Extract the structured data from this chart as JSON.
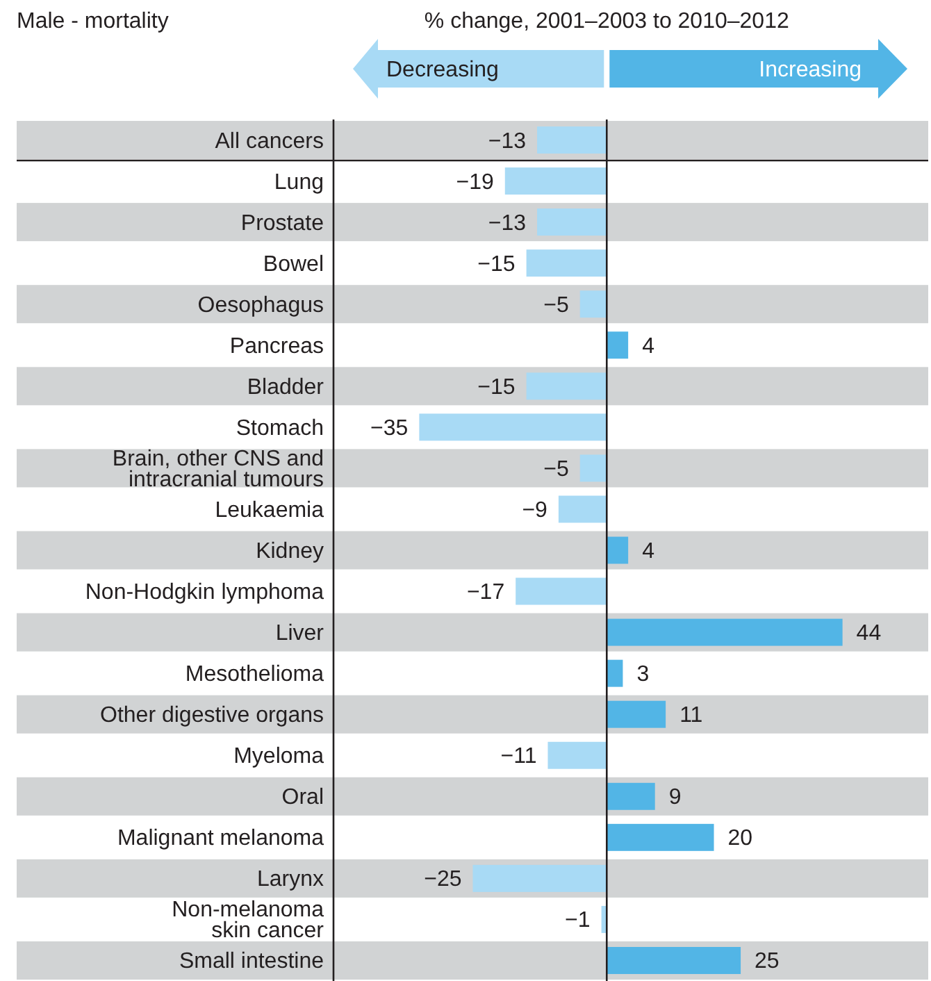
{
  "chart_data": {
    "type": "bar",
    "orientation": "horizontal",
    "title": "Male - mortality",
    "subtitle": "% change, 2001–2003 to 2010–2012",
    "annotations": [
      "Decreasing",
      "Increasing"
    ],
    "categories": [
      "All cancers",
      "Lung",
      "Prostate",
      "Bowel",
      "Oesophagus",
      "Pancreas",
      "Bladder",
      "Stomach",
      "Brain, other CNS and\nintracranial tumours",
      "Leukaemia",
      "Kidney",
      "Non-Hodgkin lymphoma",
      "Liver",
      "Mesothelioma",
      "Other digestive organs",
      "Myeloma",
      "Oral",
      "Malignant melanoma",
      "Larynx",
      "Non-melanoma\nskin cancer",
      "Small intestine"
    ],
    "values": [
      -13,
      -19,
      -13,
      -15,
      -5,
      4,
      -15,
      -35,
      -5,
      -9,
      4,
      -17,
      44,
      3,
      11,
      -11,
      9,
      20,
      -25,
      -1,
      25
    ],
    "colors": [
      "#a8daf5",
      "#a8daf5",
      "#a8daf5",
      "#a8daf5",
      "#a8daf5",
      "#52b5e6",
      "#a8daf5",
      "#a8daf5",
      "#a8daf5",
      "#a8daf5",
      "#52b5e6",
      "#a8daf5",
      "#52b5e6",
      "#52b5e6",
      "#52b5e6",
      "#a8daf5",
      "#52b5e6",
      "#52b5e6",
      "#a8daf5",
      "#a8daf5",
      "#52b5e6"
    ],
    "xlim": [
      -51,
      60
    ],
    "data_labels": true,
    "tick_labels": "y"
  }
}
